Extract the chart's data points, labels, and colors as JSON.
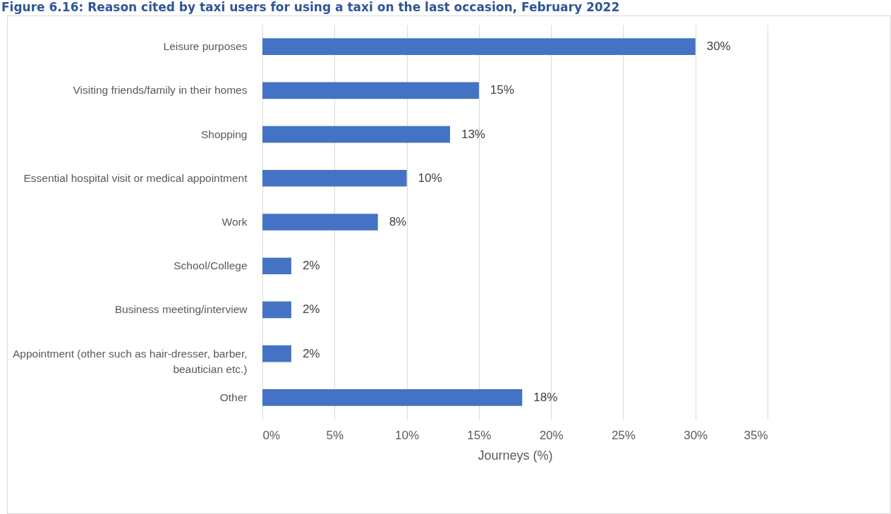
{
  "chart_data": {
    "type": "bar",
    "orientation": "horizontal",
    "title": "Figure 6.16: Reason cited by taxi users for using a taxi on the last occasion, February 2022",
    "categories": [
      "Leisure purposes",
      "Visiting friends/family in their homes",
      "Shopping",
      "Essential hospital visit or medical appointment",
      "Work",
      "School/College",
      "Business meeting/interview",
      "Appointment (other such as hair-dresser, barber, beautician etc.)",
      "Other"
    ],
    "values": [
      30,
      15,
      13,
      10,
      8,
      2,
      2,
      2,
      18
    ],
    "value_labels": [
      "30%",
      "15%",
      "13%",
      "10%",
      "8%",
      "2%",
      "2%",
      "2%",
      "18%"
    ],
    "color": "#4472c4",
    "xlabel": "Journeys (%)",
    "xlim": [
      0,
      35
    ],
    "xticks": [
      {
        "value": 0,
        "label": "0%"
      },
      {
        "value": 5,
        "label": "5%"
      },
      {
        "value": 10,
        "label": "10%"
      },
      {
        "value": 15,
        "label": "15%"
      },
      {
        "value": 20,
        "label": "20%"
      },
      {
        "value": 25,
        "label": "25%"
      },
      {
        "value": 30,
        "label": "30%"
      },
      {
        "value": 35,
        "label": "35%"
      }
    ],
    "grid": "x"
  }
}
